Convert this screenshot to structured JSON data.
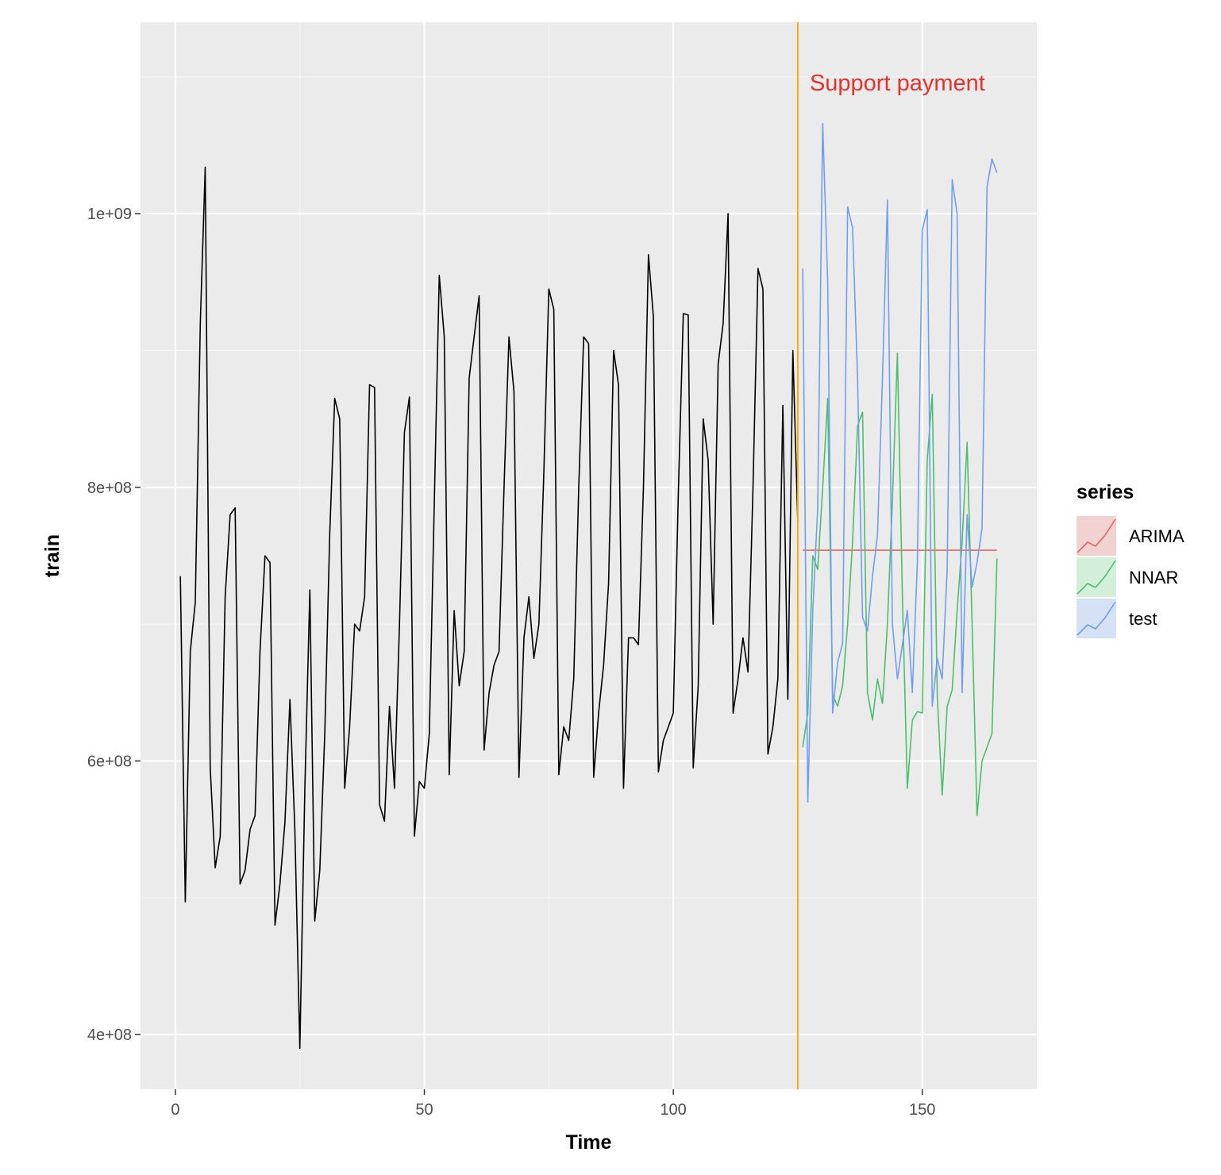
{
  "chart_data": {
    "type": "line",
    "xlabel": "Time",
    "ylabel": "train",
    "xlim": [
      -7,
      173
    ],
    "ylim": [
      360000000,
      1140000000
    ],
    "x_ticks": [
      0,
      50,
      100,
      150
    ],
    "x_tick_labels": [
      "0",
      "50",
      "100",
      "150"
    ],
    "y_ticks": [
      400000000,
      600000000,
      800000000,
      1000000000
    ],
    "y_tick_labels": [
      "4e+08",
      "6e+08",
      "8e+08",
      "1e+09"
    ],
    "grid": true,
    "background": "#ebebeb",
    "train_series": {
      "color": "#000000",
      "x": [
        1,
        2,
        3,
        4,
        5,
        6,
        7,
        8,
        9,
        10,
        11,
        12,
        13,
        14,
        15,
        16,
        17,
        18,
        19,
        20,
        21,
        22,
        23,
        24,
        25,
        26,
        27,
        28,
        29,
        30,
        31,
        32,
        33,
        34,
        35,
        36,
        37,
        38,
        39,
        40,
        41,
        42,
        43,
        44,
        45,
        46,
        47,
        48,
        49,
        50,
        51,
        52,
        53,
        54,
        55,
        56,
        57,
        58,
        59,
        60,
        61,
        62,
        63,
        64,
        65,
        66,
        67,
        68,
        69,
        70,
        71,
        72,
        73,
        74,
        75,
        76,
        77,
        78,
        79,
        80,
        81,
        82,
        83,
        84,
        85,
        86,
        87,
        88,
        89,
        90,
        91,
        92,
        93,
        94,
        95,
        96,
        97,
        98,
        99,
        100,
        101,
        102,
        103,
        104,
        105,
        106,
        107,
        108,
        109,
        110,
        111,
        112,
        113,
        114,
        115,
        116,
        117,
        118,
        119,
        120,
        121,
        122,
        123,
        124,
        125
      ],
      "values": [
        735000000,
        497000000,
        680000000,
        716000000,
        920000000,
        1034000000,
        595000000,
        522000000,
        545000000,
        720000000,
        780000000,
        785000000,
        510000000,
        520000000,
        550000000,
        560000000,
        680000000,
        750000000,
        745000000,
        480000000,
        510000000,
        555000000,
        645000000,
        550000000,
        390000000,
        580000000,
        725000000,
        483000000,
        520000000,
        620000000,
        765000000,
        865000000,
        850000000,
        580000000,
        625000000,
        700000000,
        695000000,
        720000000,
        875000000,
        873000000,
        568000000,
        556000000,
        640000000,
        580000000,
        700000000,
        840000000,
        866000000,
        545000000,
        585000000,
        580000000,
        620000000,
        790000000,
        955000000,
        910000000,
        590000000,
        710000000,
        655000000,
        680000000,
        880000000,
        910000000,
        940000000,
        608000000,
        650000000,
        670000000,
        680000000,
        800000000,
        910000000,
        870000000,
        588000000,
        690000000,
        720000000,
        675000000,
        700000000,
        810000000,
        945000000,
        930000000,
        590000000,
        625000000,
        615000000,
        660000000,
        800000000,
        910000000,
        905000000,
        588000000,
        635000000,
        670000000,
        730000000,
        900000000,
        875000000,
        580000000,
        690000000,
        690000000,
        685000000,
        800000000,
        970000000,
        925000000,
        592000000,
        615000000,
        625000000,
        635000000,
        795000000,
        927000000,
        926000000,
        595000000,
        655000000,
        850000000,
        820000000,
        700000000,
        890000000,
        920000000,
        1000000000,
        635000000,
        660000000,
        690000000,
        665000000,
        800000000,
        960000000,
        945000000,
        605000000,
        625000000,
        660000000,
        860000000,
        645000000,
        900000000,
        775000000
      ]
    },
    "forecast_start": 125,
    "vline": {
      "x": 125,
      "color": "#ffa500"
    },
    "annotation": {
      "text": "Support payment",
      "x": 145,
      "y": 1096000000,
      "color": "#e8312a"
    },
    "legend": {
      "title": "series",
      "position": "right"
    },
    "series": [
      {
        "name": "ARIMA",
        "color": "#e0665e",
        "x": [
          126,
          165
        ],
        "values": [
          754000000,
          754000000
        ]
      },
      {
        "name": "NNAR",
        "color": "#4cbf6a",
        "x": [
          126,
          127,
          128,
          129,
          130,
          131,
          132,
          133,
          134,
          135,
          136,
          137,
          138,
          139,
          140,
          141,
          142,
          143,
          144,
          145,
          146,
          147,
          148,
          149,
          150,
          151,
          152,
          153,
          154,
          155,
          156,
          157,
          158,
          159,
          160,
          161,
          162,
          163,
          164,
          165
        ],
        "values": [
          610000000,
          635000000,
          750000000,
          740000000,
          800000000,
          865000000,
          648000000,
          640000000,
          655000000,
          700000000,
          760000000,
          845000000,
          855000000,
          650000000,
          630000000,
          660000000,
          642000000,
          700000000,
          790000000,
          898000000,
          720000000,
          580000000,
          630000000,
          636000000,
          635000000,
          820000000,
          868000000,
          648000000,
          575000000,
          640000000,
          652000000,
          710000000,
          760000000,
          833000000,
          700000000,
          560000000,
          600000000,
          610000000,
          620000000,
          748000000
        ]
      },
      {
        "name": "test",
        "color": "#6f9ef6",
        "x": [
          126,
          127,
          128,
          129,
          130,
          131,
          132,
          133,
          134,
          135,
          136,
          137,
          138,
          139,
          140,
          141,
          142,
          143,
          144,
          145,
          146,
          147,
          148,
          149,
          150,
          151,
          152,
          153,
          154,
          155,
          156,
          157,
          158,
          159,
          160,
          161,
          162,
          163,
          164,
          165
        ],
        "values": [
          960000000,
          570000000,
          710000000,
          785000000,
          1066000000,
          950000000,
          635000000,
          672000000,
          686000000,
          1005000000,
          990000000,
          880000000,
          705000000,
          695000000,
          735000000,
          765000000,
          880000000,
          1010000000,
          700000000,
          660000000,
          685000000,
          710000000,
          650000000,
          745000000,
          988000000,
          1003000000,
          640000000,
          675000000,
          660000000,
          740000000,
          1025000000,
          1000000000,
          650000000,
          780000000,
          727000000,
          745000000,
          770000000,
          1020000000,
          1040000000,
          1030000000
        ]
      }
    ]
  }
}
